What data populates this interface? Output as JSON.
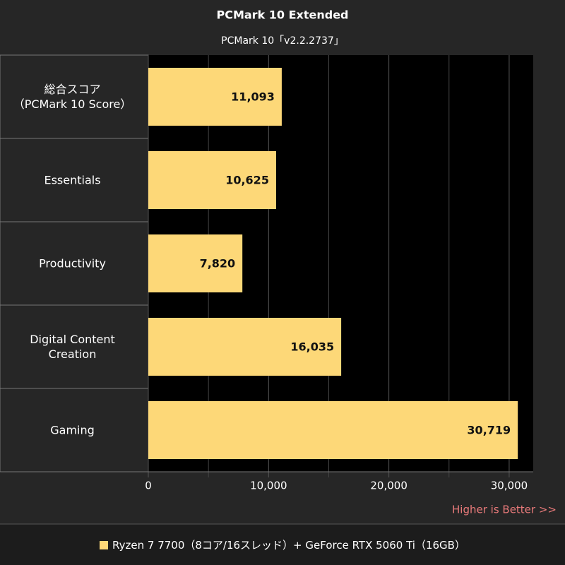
{
  "chart_data": {
    "type": "bar",
    "orientation": "horizontal",
    "title": "PCMark 10 Extended",
    "subtitle": "PCMark 10「v2.2.2737」",
    "categories": [
      "総合スコア\n（PCMark 10 Score）",
      "Essentials",
      "Productivity",
      "Digital Content\nCreation",
      "Gaming"
    ],
    "series": [
      {
        "name": "Ryzen 7 7700（8コア/16スレッド）+ GeForce RTX 5060 Ti（16GB）",
        "color": "#fdd878",
        "values": [
          11093,
          10625,
          7820,
          16035,
          30719
        ],
        "value_labels": [
          "11,093",
          "10,625",
          "7,820",
          "16,035",
          "30,719"
        ]
      }
    ],
    "xlim": [
      0,
      32000
    ],
    "xticks": [
      0,
      {
        "value": 10000,
        "label": "10,000"
      },
      {
        "value": 20000,
        "label": "20,000"
      },
      {
        "value": 30000,
        "label": "30,000"
      }
    ],
    "x_minor_ticks": [
      5000,
      15000,
      25000
    ],
    "grid": true,
    "annotation": "Higher is Better >>",
    "legend": "bottom"
  }
}
